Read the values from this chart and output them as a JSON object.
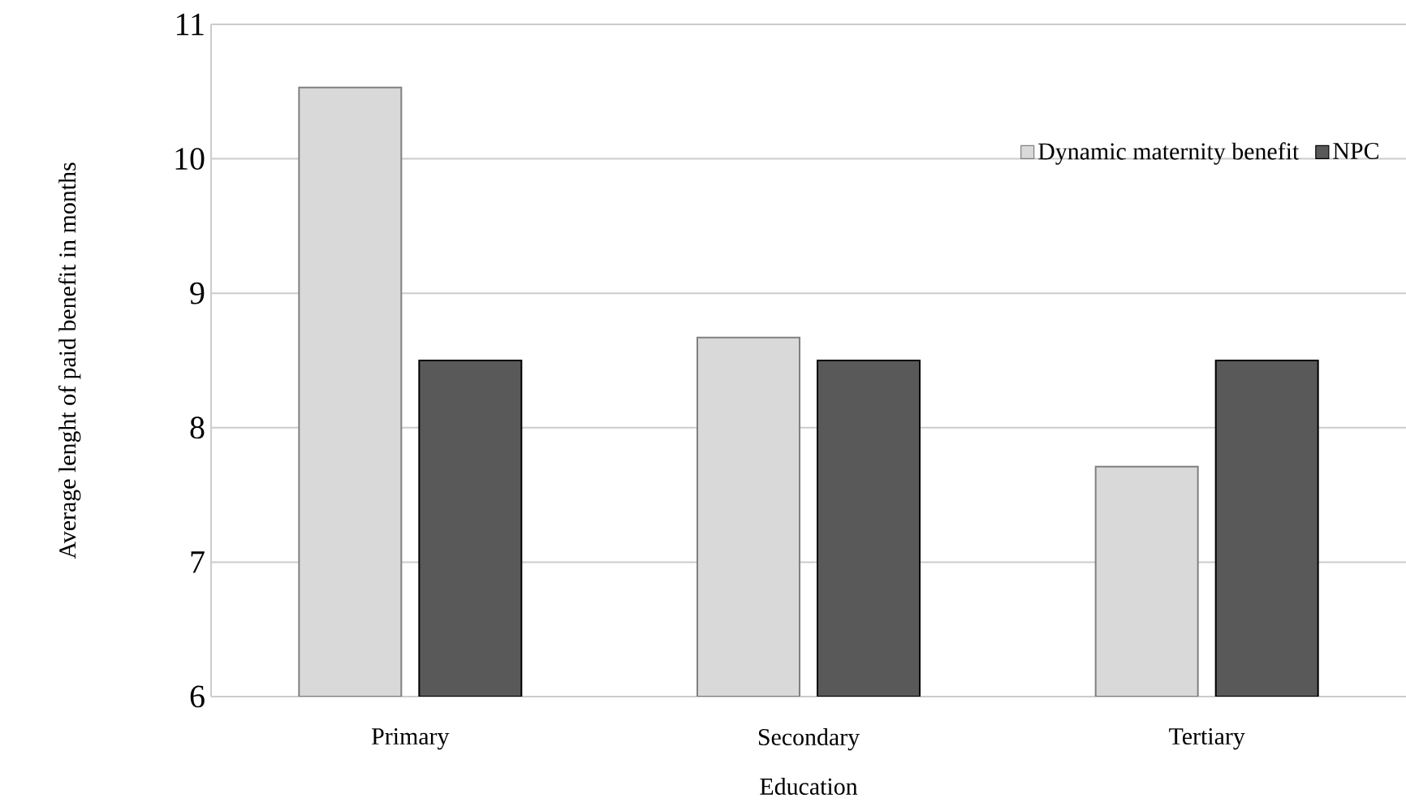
{
  "chart_data": {
    "type": "bar",
    "xlabel": "Education",
    "ylabel": "Average lenght of paid benefit in months",
    "categories": [
      "Primary",
      "Secondary",
      "Tertiary"
    ],
    "series": [
      {
        "name": "Dynamic maternity benefit",
        "color": "#d9d9d9",
        "values": [
          10.53,
          8.67,
          7.71
        ]
      },
      {
        "name": "NPC",
        "color": "#595959",
        "values": [
          8.5,
          8.5,
          8.5
        ]
      }
    ],
    "ylim": [
      6,
      11
    ],
    "yticks": [
      6,
      7,
      8,
      9,
      10,
      11
    ],
    "grid": "y",
    "legend": "top right"
  }
}
